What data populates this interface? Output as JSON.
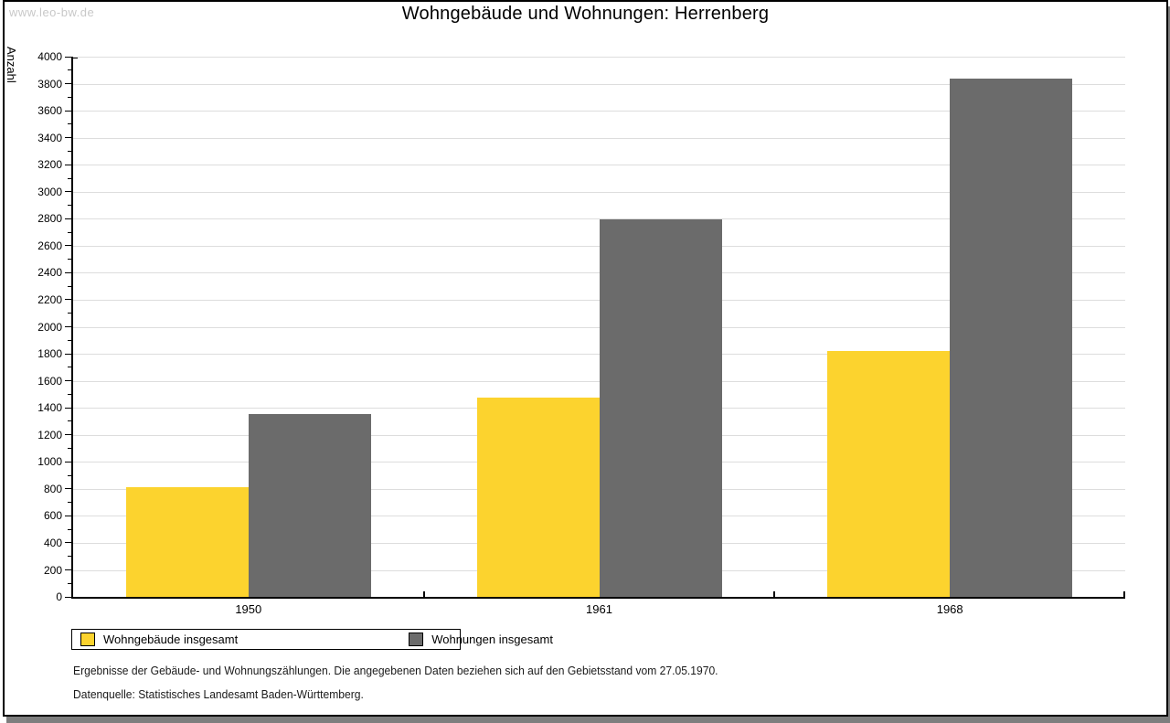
{
  "watermark": "www.leo-bw.de",
  "title": "Wohngebäude und Wohnungen: Herrenberg",
  "chart_data": {
    "type": "bar",
    "title": "Wohngebäude und Wohnungen: Herrenberg",
    "categories": [
      "1950",
      "1961",
      "1968"
    ],
    "series": [
      {
        "name": "Wohngebäude insgesamt",
        "color": "#FCD32E",
        "values": [
          810,
          1478,
          1824
        ]
      },
      {
        "name": "Wohnungen insgesamt",
        "color": "#6B6B6B",
        "values": [
          1355,
          2793,
          3838
        ]
      }
    ],
    "xlabel": "",
    "ylabel": "Anzahl",
    "ylim": [
      0,
      4000
    ],
    "ytick_step": 200,
    "yminor_step": 100,
    "grid": "horizontal-major",
    "gridline_color": "#dddddd",
    "legend_position": "bottom-left"
  },
  "footnotes": [
    "Ergebnisse der Gebäude- und Wohnungszählungen. Die angegebenen Daten beziehen sich auf den Gebietsstand vom 27.05.1970.",
    "Datenquelle: Statistisches Landesamt Baden-Württemberg."
  ]
}
